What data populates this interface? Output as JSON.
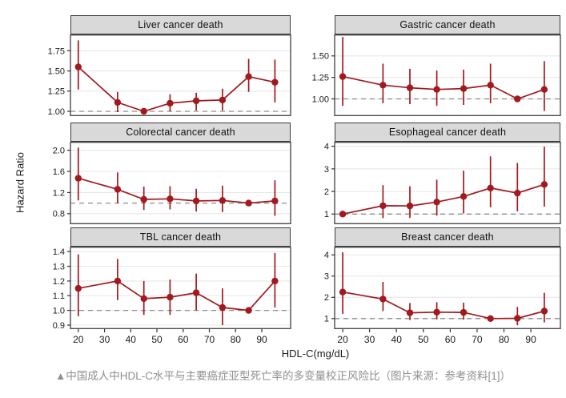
{
  "figure": {
    "y_axis_label": "Hazard Ratio",
    "x_axis_label": "HDL-C(mg/dL)",
    "caption": "▲中国成人中HDL-C水平与主要癌症亚型死亡率的多变量校正风险比（图片来源：参考资料[1]）",
    "colors": {
      "line": "#a2191f",
      "strip_bg": "#d9d9d9",
      "strip_border": "#3c3c3c",
      "panel_border": "#4d4d4d",
      "grid": "#e8e8e8",
      "ref_line": "#8c8c8c",
      "tick": "#333333",
      "caption": "#8f8f8f"
    },
    "legend": "none",
    "grid": "horizontal-major-only"
  },
  "chart_data": [
    {
      "type": "line",
      "title": "Liver cancer death",
      "x": [
        20,
        35,
        45,
        55,
        65,
        75,
        85,
        95
      ],
      "y": [
        1.55,
        1.11,
        1.0,
        1.1,
        1.13,
        1.14,
        1.43,
        1.36
      ],
      "lo": [
        1.27,
        0.99,
        1.0,
        1.0,
        1.01,
        1.01,
        1.24,
        1.11
      ],
      "hi": [
        1.88,
        1.24,
        1.0,
        1.21,
        1.23,
        1.28,
        1.65,
        1.64
      ],
      "ref_index": 2,
      "ref_line": 1.0,
      "yticks": [
        1.0,
        1.25,
        1.5,
        1.75
      ],
      "ytick_labels": [
        "1.00",
        "1.25",
        "1.50",
        "1.75"
      ],
      "ylim": [
        0.94,
        1.953
      ],
      "x_ticks": [
        20,
        30,
        40,
        50,
        60,
        70,
        80,
        90
      ],
      "xlim": [
        17,
        101
      ]
    },
    {
      "type": "line",
      "title": "Gastric cancer death",
      "x": [
        20,
        35,
        45,
        55,
        65,
        75,
        85,
        95
      ],
      "y": [
        1.26,
        1.16,
        1.13,
        1.11,
        1.12,
        1.16,
        1.0,
        1.11
      ],
      "lo": [
        0.92,
        0.95,
        0.94,
        0.92,
        0.93,
        0.95,
        1.0,
        0.86
      ],
      "hi": [
        1.72,
        1.41,
        1.35,
        1.33,
        1.34,
        1.41,
        1.0,
        1.44
      ],
      "ref_index": 6,
      "ref_line": 1.0,
      "yticks": [
        1.0,
        1.25,
        1.5
      ],
      "ytick_labels": [
        "1.00",
        "1.25",
        "1.50"
      ],
      "ylim": [
        0.8,
        1.75
      ],
      "x_ticks": [
        20,
        30,
        40,
        50,
        60,
        70,
        80,
        90
      ],
      "xlim": [
        17,
        101
      ]
    },
    {
      "type": "line",
      "title": "Colorectal cancer death",
      "x": [
        20,
        35,
        45,
        55,
        65,
        75,
        85,
        95
      ],
      "y": [
        1.47,
        1.26,
        1.07,
        1.08,
        1.04,
        1.05,
        1.0,
        1.04
      ],
      "lo": [
        1.05,
        1.0,
        0.87,
        0.88,
        0.84,
        0.83,
        1.0,
        0.76
      ],
      "hi": [
        2.05,
        1.58,
        1.31,
        1.32,
        1.27,
        1.33,
        1.0,
        1.43
      ],
      "ref_index": 6,
      "ref_line": 1.0,
      "yticks": [
        0.8,
        1.2,
        1.6,
        2.0
      ],
      "ytick_labels": [
        "0.8",
        "1.2",
        "1.6",
        "2.0"
      ],
      "ylim": [
        0.6,
        2.16
      ],
      "x_ticks": [
        20,
        30,
        40,
        50,
        60,
        70,
        80,
        90
      ],
      "xlim": [
        17,
        101
      ]
    },
    {
      "type": "line",
      "title": "Esophageal cancer death",
      "x": [
        20,
        35,
        45,
        55,
        65,
        75,
        85,
        95
      ],
      "y": [
        1.0,
        1.37,
        1.36,
        1.53,
        1.78,
        2.15,
        1.93,
        2.31
      ],
      "lo": [
        1.0,
        0.82,
        0.83,
        0.93,
        1.03,
        1.3,
        1.12,
        1.33
      ],
      "hi": [
        1.0,
        2.28,
        2.23,
        2.52,
        2.92,
        3.55,
        3.26,
        3.98
      ],
      "ref_index": 0,
      "ref_line": 1.0,
      "yticks": [
        1,
        2,
        3,
        4
      ],
      "ytick_labels": [
        "1",
        "2",
        "3",
        "4"
      ],
      "ylim": [
        0.55,
        4.2
      ],
      "x_ticks": [
        20,
        30,
        40,
        50,
        60,
        70,
        80,
        90
      ],
      "xlim": [
        17,
        101
      ]
    },
    {
      "type": "line",
      "title": "TBL cancer death",
      "x": [
        20,
        35,
        45,
        55,
        65,
        75,
        85,
        95
      ],
      "y": [
        1.15,
        1.2,
        1.08,
        1.09,
        1.12,
        1.02,
        1.0,
        1.2
      ],
      "lo": [
        0.96,
        1.07,
        0.97,
        0.97,
        1.0,
        0.9,
        1.0,
        1.02
      ],
      "hi": [
        1.38,
        1.35,
        1.2,
        1.21,
        1.25,
        1.15,
        1.0,
        1.39
      ],
      "ref_index": 6,
      "ref_line": 1.0,
      "yticks": [
        0.9,
        1.0,
        1.1,
        1.2,
        1.3,
        1.4
      ],
      "ytick_labels": [
        "0.9",
        "1.0",
        "1.1",
        "1.2",
        "1.3",
        "1.4"
      ],
      "ylim": [
        0.873,
        1.433
      ],
      "x_ticks": [
        20,
        30,
        40,
        50,
        60,
        70,
        80,
        90
      ],
      "xlim": [
        17,
        101
      ]
    },
    {
      "type": "line",
      "title": "Breast cancer death",
      "x": [
        20,
        35,
        45,
        55,
        65,
        75,
        85,
        95
      ],
      "y": [
        2.25,
        1.92,
        1.27,
        1.3,
        1.29,
        1.0,
        1.01,
        1.35
      ],
      "lo": [
        1.22,
        1.35,
        0.93,
        0.96,
        0.95,
        1.0,
        0.68,
        0.82
      ],
      "hi": [
        4.12,
        2.73,
        1.73,
        1.77,
        1.75,
        1.0,
        1.55,
        2.21
      ],
      "ref_index": 5,
      "ref_line": 1.0,
      "yticks": [
        1,
        2,
        3,
        4
      ],
      "ytick_labels": [
        "1",
        "2",
        "3",
        "4"
      ],
      "ylim": [
        0.5,
        4.39
      ],
      "x_ticks": [
        20,
        30,
        40,
        50,
        60,
        70,
        80,
        90
      ],
      "xlim": [
        17,
        101
      ]
    }
  ]
}
